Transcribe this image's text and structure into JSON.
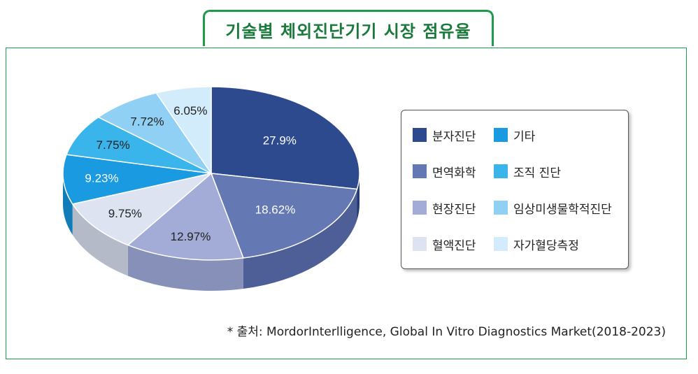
{
  "title": "기술별 체외진단기기 시장 점유율",
  "source": "* 출처: MordorInterlligence, Global In Vitro Diagnostics Market(2018-2023)",
  "chart_data": {
    "type": "pie",
    "title": "기술별 체외진단기기 시장 점유율",
    "slices": [
      {
        "label": "분자진단",
        "value": 27.9,
        "display": "27.9%",
        "color": "#2e4a8e",
        "side": "#223a72",
        "text": "#ffffff"
      },
      {
        "label": "면역화학",
        "value": 18.62,
        "display": "18.62%",
        "color": "#6478b4",
        "side": "#4d5f96",
        "text": "#ffffff"
      },
      {
        "label": "현장진단",
        "value": 12.97,
        "display": "12.97%",
        "color": "#a3acd6",
        "side": "#8690b8",
        "text": "#222222"
      },
      {
        "label": "혈액진단",
        "value": 9.75,
        "display": "9.75%",
        "color": "#dde3f1",
        "side": "#b4bac8",
        "text": "#222222"
      },
      {
        "label": "기타",
        "value": 9.23,
        "display": "9.23%",
        "color": "#1a9ae0",
        "side": "#117cb8",
        "text": "#ffffff"
      },
      {
        "label": "조직 진단",
        "value": 7.75,
        "display": "7.75%",
        "color": "#3ab5ec",
        "side": "#2694c8",
        "text": "#222222"
      },
      {
        "label": "임상미생물학적진단",
        "value": 7.72,
        "display": "7.72%",
        "color": "#8fd0f4",
        "side": "#6eb0d6",
        "text": "#222222"
      },
      {
        "label": "자가혈당측정",
        "value": 6.05,
        "display": "6.05%",
        "color": "#d3ecfb",
        "side": "#abc6d8",
        "text": "#222222"
      }
    ],
    "legend_order": [
      "분자진단",
      "기타",
      "면역화학",
      "조직 진단",
      "현장진단",
      "임상미생물학적진단",
      "혈액진단",
      "자가혈당측정"
    ],
    "legend_position": "right"
  }
}
